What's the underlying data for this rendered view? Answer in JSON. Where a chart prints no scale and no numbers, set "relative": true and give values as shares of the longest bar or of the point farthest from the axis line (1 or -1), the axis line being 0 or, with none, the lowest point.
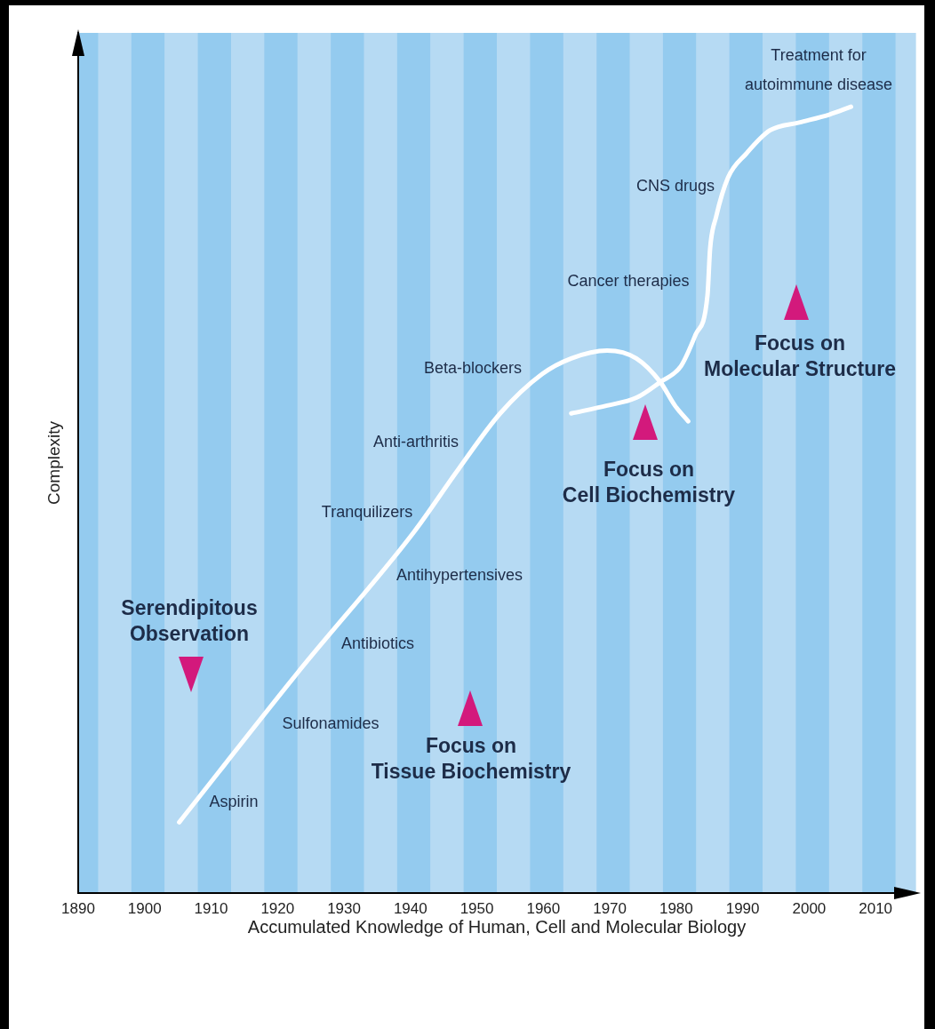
{
  "chart_data": {
    "type": "line",
    "xlabel": "Accumulated Knowledge of Human, Cell and Molecular Biology",
    "ylabel": "Complexity",
    "relative": true,
    "xlim": [
      1890,
      2016
    ],
    "xticks": [
      1890,
      1900,
      1910,
      1920,
      1930,
      1940,
      1950,
      1960,
      1970,
      1980,
      1990,
      2000,
      2010
    ],
    "marker": "none",
    "line_style": "solid",
    "series": [
      {
        "color": "#ffffff",
        "x": [
          1905.2,
          1923.0,
          1940.6,
          1947.3,
          1953.5,
          1959.8,
          1964.2,
          1969.6,
          1974.0,
          1977.6,
          1979.8,
          1981.8
        ],
        "values": [
          0.09,
          0.28,
          0.46,
          0.54,
          0.61,
          0.66,
          0.68,
          0.69,
          0.68,
          0.65,
          0.62,
          0.6
        ]
      },
      {
        "color": "#ffffff",
        "x": [
          1964.2,
          1969.6,
          1974.0,
          1977.6,
          1980.7,
          1982.9,
          1984.7,
          1985.1,
          1986.0,
          1987.8,
          1990.5,
          1994.1,
          1998.5,
          2003.0,
          2006.3
        ],
        "values": [
          0.61,
          0.62,
          0.63,
          0.65,
          0.67,
          0.71,
          0.76,
          0.82,
          0.86,
          0.91,
          0.94,
          0.97,
          0.98,
          0.99,
          1
        ]
      }
    ],
    "bands": [
      {
        "axis": "x",
        "from": 1890,
        "to": 1893,
        "color": "#94cbef"
      },
      {
        "axis": "x",
        "from": 1893,
        "to": 1898,
        "color": "#b6daf3"
      },
      {
        "axis": "x",
        "from": 1898,
        "to": 1903,
        "color": "#94cbef"
      },
      {
        "axis": "x",
        "from": 1903,
        "to": 1908,
        "color": "#b6daf3"
      },
      {
        "axis": "x",
        "from": 1908,
        "to": 1913,
        "color": "#94cbef"
      },
      {
        "axis": "x",
        "from": 1913,
        "to": 1918,
        "color": "#b6daf3"
      },
      {
        "axis": "x",
        "from": 1918,
        "to": 1923,
        "color": "#94cbef"
      },
      {
        "axis": "x",
        "from": 1923,
        "to": 1928,
        "color": "#b6daf3"
      },
      {
        "axis": "x",
        "from": 1928,
        "to": 1933,
        "color": "#94cbef"
      },
      {
        "axis": "x",
        "from": 1933,
        "to": 1938,
        "color": "#b6daf3"
      },
      {
        "axis": "x",
        "from": 1938,
        "to": 1943,
        "color": "#94cbef"
      },
      {
        "axis": "x",
        "from": 1943,
        "to": 1948,
        "color": "#b6daf3"
      },
      {
        "axis": "x",
        "from": 1948,
        "to": 1953,
        "color": "#94cbef"
      },
      {
        "axis": "x",
        "from": 1953,
        "to": 1958,
        "color": "#b6daf3"
      },
      {
        "axis": "x",
        "from": 1958,
        "to": 1963,
        "color": "#94cbef"
      },
      {
        "axis": "x",
        "from": 1963,
        "to": 1968,
        "color": "#b6daf3"
      },
      {
        "axis": "x",
        "from": 1968,
        "to": 1973,
        "color": "#94cbef"
      },
      {
        "axis": "x",
        "from": 1973,
        "to": 1978,
        "color": "#b6daf3"
      },
      {
        "axis": "x",
        "from": 1978,
        "to": 1983,
        "color": "#94cbef"
      },
      {
        "axis": "x",
        "from": 1983,
        "to": 1988,
        "color": "#b6daf3"
      },
      {
        "axis": "x",
        "from": 1988,
        "to": 1993,
        "color": "#94cbef"
      },
      {
        "axis": "x",
        "from": 1993,
        "to": 1998,
        "color": "#b6daf3"
      },
      {
        "axis": "x",
        "from": 1998,
        "to": 2003,
        "color": "#94cbef"
      },
      {
        "axis": "x",
        "from": 2003,
        "to": 2008,
        "color": "#b6daf3"
      },
      {
        "axis": "x",
        "from": 2008,
        "to": 2013,
        "color": "#94cbef"
      },
      {
        "axis": "x",
        "from": 2013,
        "to": 2016,
        "color": "#b6daf3"
      }
    ],
    "annotations": [
      "Aspirin",
      "Sulfonamides",
      "Antibiotics",
      "Antihypertensives",
      "Tranquilizers",
      "Anti-arthritis",
      "Beta-blockers",
      "Cancer therapies",
      "CNS drugs",
      "Treatment for\nautoimmune disease",
      "Serendipitous\nObservation",
      "Focus on\nTissue Biochemistry",
      "Focus on\nCell Biochemistry",
      "Focus on\nMolecular Structure"
    ]
  }
}
